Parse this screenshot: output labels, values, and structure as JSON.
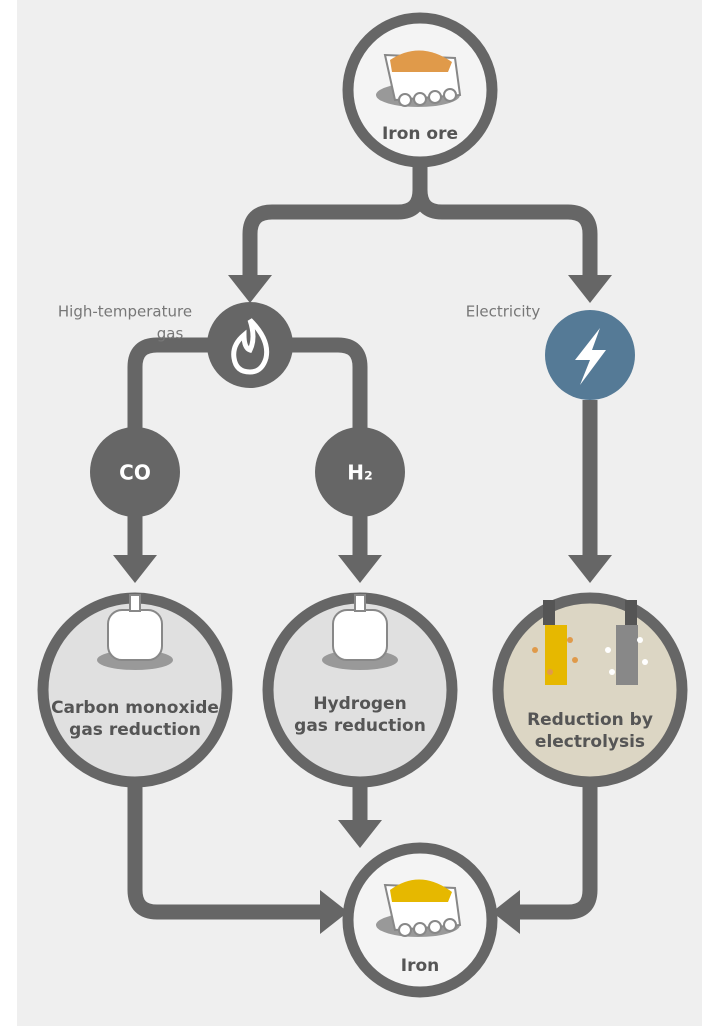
{
  "nodes": [
    {
      "label": "Iron ore"
    },
    {
      "label": [
        "High-temperature",
        "gas"
      ]
    },
    {
      "label": "Electricity"
    },
    {
      "label": "CO"
    },
    {
      "label": "H₂"
    },
    {
      "label": [
        "Carbon monoxide",
        "gas reduction"
      ]
    },
    {
      "label": [
        "Hydrogen",
        "gas reduction"
      ]
    },
    {
      "label": [
        "Reduction by",
        "electrolysis"
      ]
    },
    {
      "label": "Iron"
    }
  ]
}
